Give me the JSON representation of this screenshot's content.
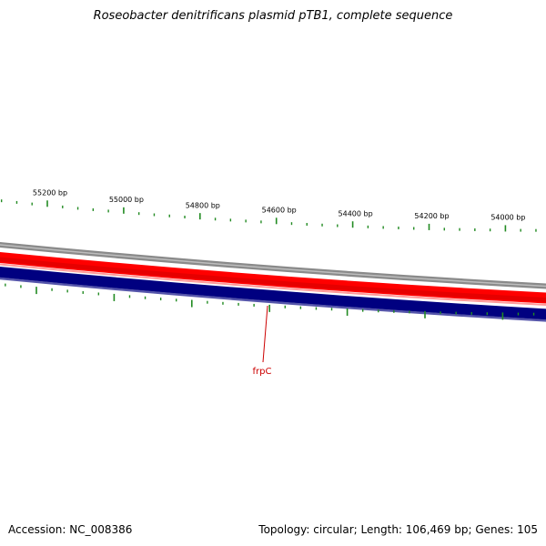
{
  "title": "Roseobacter denitrificans plasmid pTB1, complete sequence",
  "accession_line": "Accession: NC_008386",
  "summary_line": "Topology: circular; Length: 106,469 bp; Genes: 105",
  "map": {
    "position_labels": [
      "55200 bp",
      "55000 bp",
      "54800 bp",
      "54600 bp",
      "54400 bp",
      "54200 bp",
      "54000 bp"
    ],
    "genes": [
      {
        "name": "frpC",
        "label_color": "#cc0000"
      }
    ],
    "colors": {
      "backbone": "#888888",
      "forward_strand": "#ff0000",
      "reverse_strand": "#000080",
      "reverse_edge": "#5555aa",
      "ticks": "#228B22",
      "gene_label": "#cc0000"
    }
  }
}
